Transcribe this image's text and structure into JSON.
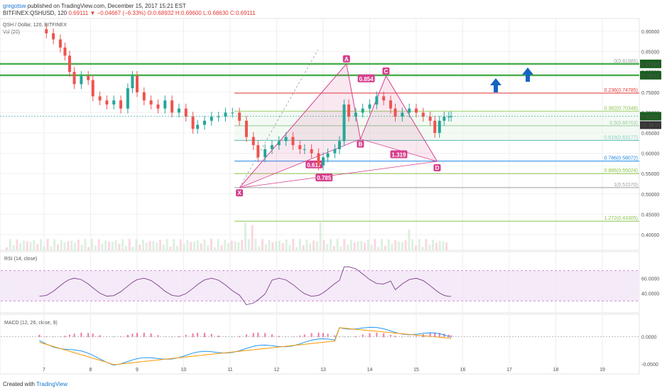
{
  "header": {
    "user": "gregotsw",
    "publish_text": "published on TradingView.com, December 15, 2017 15:21 EST",
    "symbol": "BITFINEX:QSHUSD, 120",
    "change": "0.69111 ▼ −0.04667 (−6.33%)",
    "ohlc": "O:0.68932 H:0.69600 L:0.68630 C:0.69111",
    "pair": "QSH / Dollar, 120, BITFINEX",
    "vol": "Vol (20)"
  },
  "footer": {
    "created_with": "Created with",
    "brand": "TradingView"
  },
  "price_axis": {
    "ticks": [
      "0.90000",
      "0.85000",
      "0.80000",
      "0.75000",
      "0.70000",
      "0.65000",
      "0.60000",
      "0.55000",
      "0.50000",
      "0.45000",
      "0.40000"
    ],
    "current_label": "0.69111",
    "countdown_label": "01:38:07",
    "tag_0": "0.81985",
    "tag_1": "0.79191"
  },
  "time_axis": [
    "7",
    "8",
    "9",
    "10",
    "11",
    "12",
    "13",
    "14",
    "15",
    "16",
    "17",
    "18",
    "19"
  ],
  "fib_levels": [
    {
      "label": "0(0.81985)",
      "color": "#9e9e9e"
    },
    {
      "label": "0.236(0.74785)",
      "color": "#e53935"
    },
    {
      "label": "0.382(0.70348)",
      "color": "#8bc34a"
    },
    {
      "label": "0.5(0.66763)",
      "color": "#43a047"
    },
    {
      "label": "0.618(0.63177)",
      "color": "#26a69a"
    },
    {
      "label": "0.786(0.58072)",
      "color": "#1e88e5"
    },
    {
      "label": "0.886(0.55024)",
      "color": "#8bc34a"
    },
    {
      "label": "1(0.51570)",
      "color": "#9e9e9e"
    },
    {
      "label": "1.272(0.43305)",
      "color": "#8bc34a"
    }
  ],
  "pattern": {
    "points": [
      "X",
      "A",
      "B",
      "C",
      "D"
    ],
    "ratios": [
      "0.854",
      "0.617",
      "1.319",
      "0.785"
    ]
  },
  "rsi": {
    "label": "RSI (14, close)",
    "ticks": [
      "60.0000",
      "40.0000"
    ]
  },
  "macd": {
    "label": "MACD (12, 26, close, 9)",
    "ticks": [
      "0.0000",
      "-0.0500"
    ]
  },
  "colors": {
    "up": "#26a69a",
    "down": "#ef5350",
    "macd": "#2196f3",
    "signal": "#ff9800",
    "rsi": "#7b3f8c",
    "pattern": "#d63f8c",
    "hline": "#4caf50",
    "arrow": "#1565c0"
  },
  "chart_data": {
    "type": "candlestick",
    "title": "QSH / Dollar, 120, BITFINEX",
    "x_range": [
      "Dec 7",
      "Dec 19"
    ],
    "ylim": [
      0.4,
      0.92
    ],
    "close_path": [
      [
        6.9,
        0.905
      ],
      [
        7.05,
        0.895
      ],
      [
        7.2,
        0.88
      ],
      [
        7.35,
        0.86
      ],
      [
        7.45,
        0.84
      ],
      [
        7.55,
        0.8
      ],
      [
        7.65,
        0.77
      ],
      [
        7.8,
        0.79
      ],
      [
        7.95,
        0.78
      ],
      [
        8.05,
        0.74
      ],
      [
        8.2,
        0.73
      ],
      [
        8.35,
        0.72
      ],
      [
        8.5,
        0.73
      ],
      [
        8.65,
        0.71
      ],
      [
        8.8,
        0.76
      ],
      [
        8.9,
        0.79
      ],
      [
        9.0,
        0.75
      ],
      [
        9.15,
        0.73
      ],
      [
        9.3,
        0.72
      ],
      [
        9.45,
        0.71
      ],
      [
        9.6,
        0.73
      ],
      [
        9.75,
        0.7
      ],
      [
        9.9,
        0.71
      ],
      [
        10.05,
        0.69
      ],
      [
        10.2,
        0.66
      ],
      [
        10.3,
        0.67
      ],
      [
        10.45,
        0.68
      ],
      [
        10.6,
        0.69
      ],
      [
        10.75,
        0.69
      ],
      [
        10.9,
        0.7
      ],
      [
        11.05,
        0.7
      ],
      [
        11.2,
        0.68
      ],
      [
        11.35,
        0.64
      ],
      [
        11.5,
        0.62
      ],
      [
        11.6,
        0.59
      ],
      [
        11.75,
        0.61
      ],
      [
        11.9,
        0.62
      ],
      [
        12.05,
        0.63
      ],
      [
        12.2,
        0.64
      ],
      [
        12.35,
        0.62
      ],
      [
        12.5,
        0.61
      ],
      [
        12.6,
        0.61
      ],
      [
        12.75,
        0.6
      ],
      [
        12.9,
        0.57
      ],
      [
        13.0,
        0.59
      ],
      [
        13.1,
        0.6
      ],
      [
        13.25,
        0.61
      ],
      [
        13.35,
        0.63
      ],
      [
        13.45,
        0.72
      ],
      [
        13.55,
        0.69
      ],
      [
        13.7,
        0.7
      ],
      [
        13.85,
        0.71
      ],
      [
        14.0,
        0.72
      ],
      [
        14.15,
        0.74
      ],
      [
        14.3,
        0.73
      ],
      [
        14.45,
        0.71
      ],
      [
        14.55,
        0.69
      ],
      [
        14.7,
        0.7
      ],
      [
        14.85,
        0.71
      ],
      [
        15.0,
        0.7
      ],
      [
        15.15,
        0.69
      ],
      [
        15.3,
        0.68
      ],
      [
        15.4,
        0.65
      ],
      [
        15.5,
        0.68
      ],
      [
        15.6,
        0.69
      ],
      [
        15.7,
        0.69
      ],
      [
        15.75,
        0.691
      ]
    ],
    "xabcd": {
      "X": [
        11.2,
        0.515
      ],
      "A": [
        13.5,
        0.82
      ],
      "B": [
        13.8,
        0.635
      ],
      "C": [
        14.35,
        0.79
      ],
      "D": [
        15.45,
        0.58
      ]
    },
    "horizontal_levels": [
      0.81985,
      0.79191
    ],
    "rsi_range": [
      20,
      80
    ],
    "macd_range": [
      -0.06,
      0.03
    ]
  }
}
